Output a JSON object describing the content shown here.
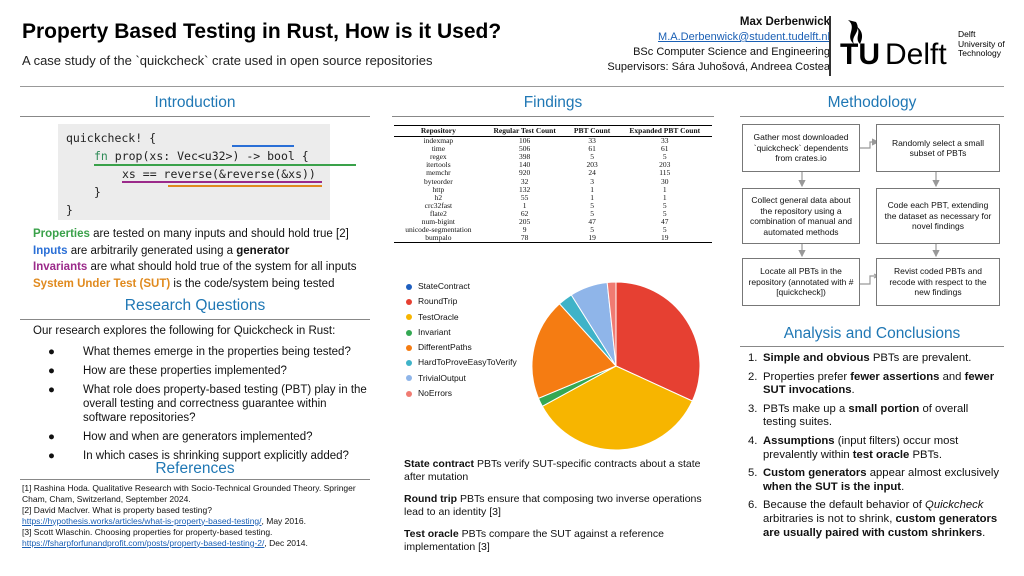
{
  "header": {
    "title": "Property Based Testing in Rust, How is it Used?",
    "subtitle": "A case study of the `quickcheck` crate used in open source repositories",
    "author": "Max Derbenwick",
    "email": "M.A.Derbenwick@student.tudelft.nl",
    "program": "BSc Computer Science and Engineering",
    "supervisors": "Supervisors: Sára Juhošová, Andreea Costea",
    "logo_text": "TUDelft",
    "logo_caption_1": "Delft",
    "logo_caption_2": "University of",
    "logo_caption_3": "Technology"
  },
  "sections": {
    "introduction": "Introduction",
    "research_questions": "Research Questions",
    "references": "References",
    "findings": "Findings",
    "methodology": "Methodology",
    "analysis": "Analysis and Conclusions"
  },
  "code": {
    "line1": "quickcheck! {",
    "line2_fn": "fn",
    "line2_rest": " prop(xs: Vec<u32>) -> bool {",
    "line3": "xs == reverse(&reverse(&xs))",
    "line4": "}",
    "line5": "}"
  },
  "intro_terms": {
    "properties_term": "Properties",
    "properties_text": " are tested on many inputs and should hold true [2]",
    "inputs_term": "Inputs",
    "inputs_text": " are arbitrarily generated using a ",
    "inputs_bold": "generator",
    "invariants_term": "Invariants",
    "invariants_text": " are what should hold true of the system for all inputs",
    "sut_term": "System Under Test (SUT)",
    "sut_text": " is the code/system being tested"
  },
  "research": {
    "intro": "Our research explores the following for Quickcheck in Rust:",
    "bullet": "●",
    "questions": [
      "What themes emerge in the properties being tested?",
      "How are these properties implemented?",
      "What role does property-based testing (PBT) play in the overall testing and correctness guarantee within software repositories?",
      "How and when are generators implemented?",
      "In which cases is shrinking support explicitly added?"
    ]
  },
  "references": [
    {
      "text": "[1] Rashina Hoda. Qualitative Research with Socio-Technical Grounded Theory. Springer Cham, Cham, Switzerland, September 2024.",
      "link": "",
      "suffix": ""
    },
    {
      "text": "[2] David MacIver. What is property based testing?",
      "link": "https://hypothesis.works/articles/what-is-property-based-testing/",
      "suffix": ", May 2016."
    },
    {
      "text": "[3] Scott Wlaschin. Choosing properties for property-based testing.",
      "link": "https://fsharpforfunandprofit.com/posts/property-based-testing-2/",
      "suffix": ", Dec 2014."
    }
  ],
  "table": {
    "headers": [
      "Repository",
      "Regular Test Count",
      "PBT Count",
      "Expanded PBT Count"
    ],
    "rows": [
      [
        "indexmap",
        "106",
        "33",
        "33"
      ],
      [
        "time",
        "506",
        "61",
        "61"
      ],
      [
        "regex",
        "398",
        "5",
        "5"
      ],
      [
        "itertools",
        "140",
        "203",
        "203"
      ],
      [
        "memchr",
        "920",
        "24",
        "115"
      ],
      [
        "byteorder",
        "32",
        "3",
        "30"
      ],
      [
        "http",
        "132",
        "1",
        "1"
      ],
      [
        "h2",
        "55",
        "1",
        "1"
      ],
      [
        "crc32fast",
        "1",
        "5",
        "5"
      ],
      [
        "flate2",
        "62",
        "5",
        "5"
      ],
      [
        "num-bigint",
        "205",
        "47",
        "47"
      ],
      [
        "unicode-segmentation",
        "9",
        "5",
        "5"
      ],
      [
        "bumpalo",
        "78",
        "19",
        "19"
      ]
    ]
  },
  "chart_data": {
    "type": "pie",
    "labels": [
      "StateContract",
      "RoundTrip",
      "TestOracle",
      "Invariant",
      "DifferentPaths",
      "HardToProveEasyToVerify",
      "TrivialOutput",
      "NoErrors"
    ],
    "values": [
      0,
      28.5,
      31.5,
      1.5,
      17.5,
      2.5,
      6.5,
      1.5
    ],
    "colors": [
      "#1f5fbf",
      "#e64032",
      "#f7b500",
      "#34a853",
      "#f57c12",
      "#3fb3c8",
      "#8fb5e9",
      "#f07b72"
    ]
  },
  "definitions": [
    {
      "term": "State contract",
      "text": " PBTs verify SUT-specific contracts about a state after mutation"
    },
    {
      "term": "Round trip",
      "text": " PBTs ensure that composing two inverse operations lead to an identity [3]"
    },
    {
      "term": "Test oracle",
      "text": " PBTs compare the SUT against a reference implementation [3]"
    }
  ],
  "methodology": {
    "steps": [
      "Gather most downloaded `quickcheck` dependents from crates.io",
      "Collect general data about the repository using a combination of manual and automated methods",
      "Locate all PBTs in the repository (annotated with #[quickcheck])",
      "Randomly select a small subset of PBTs",
      "Code each PBT, extending the dataset as necessary for novel findings",
      "Revist coded PBTs and recode with respect to the new findings"
    ]
  },
  "conclusions": [
    {
      "num": "1.",
      "parts": [
        [
          "b",
          "Simple and obvious"
        ],
        [
          "t",
          " PBTs are prevalent."
        ]
      ]
    },
    {
      "num": "2.",
      "parts": [
        [
          "t",
          "Properties prefer "
        ],
        [
          "b",
          "fewer assertions"
        ],
        [
          "t",
          " and "
        ],
        [
          "b",
          "fewer SUT invocations"
        ],
        [
          "t",
          "."
        ]
      ]
    },
    {
      "num": "3.",
      "parts": [
        [
          "t",
          "PBTs make up a "
        ],
        [
          "b",
          "small portion"
        ],
        [
          "t",
          " of overall testing suites."
        ]
      ]
    },
    {
      "num": "4.",
      "parts": [
        [
          "b",
          "Assumptions"
        ],
        [
          "t",
          " (input filters) occur most prevalently within "
        ],
        [
          "b",
          "test oracle"
        ],
        [
          "t",
          " PBTs."
        ]
      ]
    },
    {
      "num": "5.",
      "parts": [
        [
          "b",
          "Custom generators"
        ],
        [
          "t",
          " appear almost exclusively "
        ],
        [
          "b",
          "when the SUT is the input"
        ],
        [
          "t",
          "."
        ]
      ]
    },
    {
      "num": "6.",
      "parts": [
        [
          "t",
          "Because the default behavior of "
        ],
        [
          "i",
          "Quickcheck"
        ],
        [
          "t",
          " arbitraries is not to shrink, "
        ],
        [
          "b",
          "custom generators are usually paired with custom shrinkers"
        ],
        [
          "t",
          "."
        ]
      ]
    }
  ]
}
